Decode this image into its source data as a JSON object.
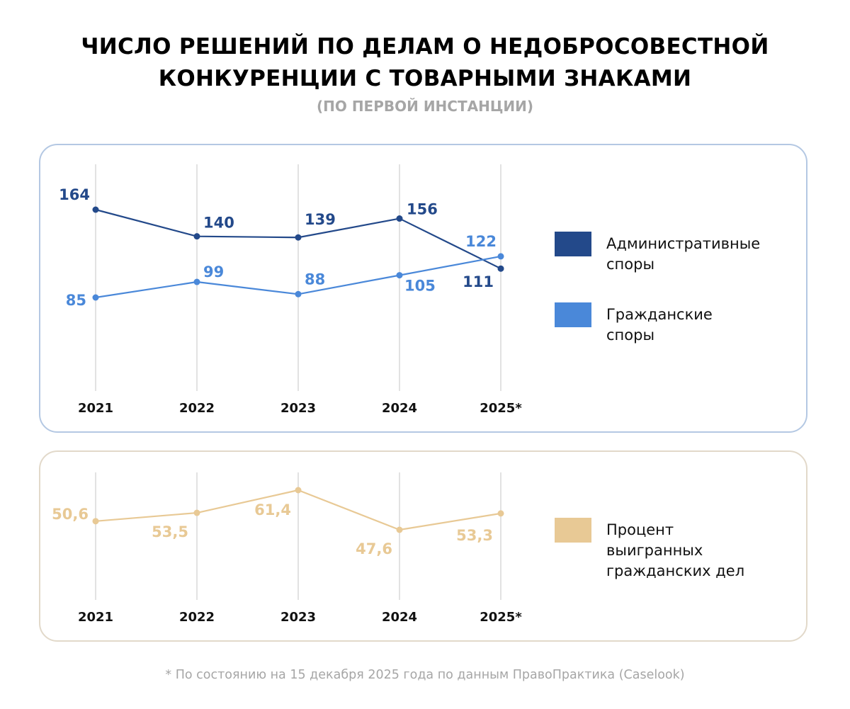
{
  "title_line1": "ЧИСЛО РЕШЕНИЙ ПО ДЕЛАМ О НЕДОБРОСОВЕСТНОЙ",
  "title_line2": "КОНКУРЕНЦИИ С ТОВАРНЫМИ ЗНАКАМИ",
  "subtitle": "(ПО ПЕРВОЙ ИНСТАНЦИИ)",
  "footnote": "* По состоянию на 15 декабря 2025 года по данным ПравоПрактика (Caselook)",
  "colors": {
    "administrative": "#23498a",
    "civil": "#4a88d9",
    "percent": "#e8c995",
    "grid": "#d9d9d9"
  },
  "legend": {
    "administrative": [
      "Административные",
      "споры"
    ],
    "civil": [
      "Гражданские",
      "споры"
    ],
    "percent": [
      "Процент",
      "выигранных",
      "гражданских дел"
    ]
  },
  "chart_data": [
    {
      "type": "line",
      "title": "Число решений по делам о недобросовестной конкуренции с товарными знаками (по первой инстанции)",
      "categories": [
        "2021",
        "2022",
        "2023",
        "2024",
        "2025*"
      ],
      "series": [
        {
          "name": "Административные споры",
          "values": [
            164,
            140,
            139,
            156,
            111
          ],
          "labels": [
            "164",
            "140",
            "139",
            "156",
            "111"
          ]
        },
        {
          "name": "Гражданские споры",
          "values": [
            85,
            99,
            88,
            105,
            122
          ],
          "labels": [
            "85",
            "99",
            "88",
            "105",
            "122"
          ]
        }
      ],
      "xlabel": "",
      "ylabel": "",
      "y_axis_visible": false,
      "grid": "vertical",
      "legend": "right"
    },
    {
      "type": "line",
      "categories": [
        "2021",
        "2022",
        "2023",
        "2024",
        "2025*"
      ],
      "series": [
        {
          "name": "Процент выигранных гражданских дел",
          "values": [
            50.6,
            53.5,
            61.4,
            47.6,
            53.3
          ],
          "labels": [
            "50,6",
            "53,5",
            "61,4",
            "47,6",
            "53,3"
          ]
        }
      ],
      "xlabel": "",
      "ylabel": "",
      "y_axis_visible": false,
      "grid": "vertical",
      "legend": "right"
    }
  ]
}
